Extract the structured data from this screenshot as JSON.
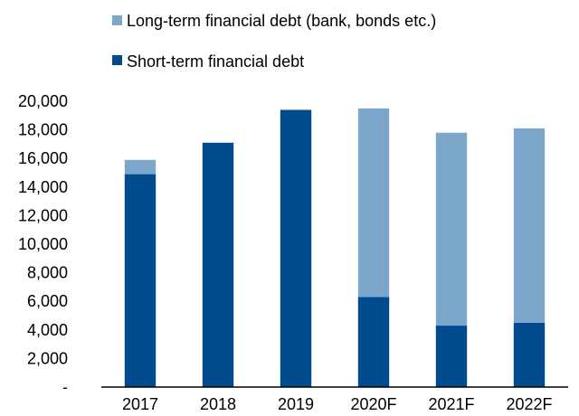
{
  "chart_data": {
    "type": "bar",
    "stacked": true,
    "categories": [
      "2017",
      "2018",
      "2019",
      "2020F",
      "2021F",
      "2022F"
    ],
    "series": [
      {
        "name": "Short-term financial debt",
        "color": "#004B8D",
        "values": [
          14900,
          17100,
          19400,
          6300,
          4300,
          4500
        ]
      },
      {
        "name": "Long-term financial debt (bank, bonds etc.)",
        "color": "#7DA7CA",
        "values": [
          1000,
          0,
          0,
          13200,
          13500,
          13600
        ]
      }
    ],
    "ylim": [
      0,
      20000
    ],
    "yticks": [
      0,
      2000,
      4000,
      6000,
      8000,
      10000,
      12000,
      14000,
      16000,
      18000,
      20000
    ],
    "ytick_labels": [
      "-",
      "2,000",
      "4,000",
      "6,000",
      "8,000",
      "10,000",
      "12,000",
      "14,000",
      "16,000",
      "18,000",
      "20,000"
    ],
    "grid": false,
    "legend_position": "top",
    "legend": [
      {
        "label": "Long-term financial debt (bank, bonds etc.)",
        "color": "#7DA7CA"
      },
      {
        "label": "Short-term financial debt",
        "color": "#004B8D"
      }
    ]
  }
}
